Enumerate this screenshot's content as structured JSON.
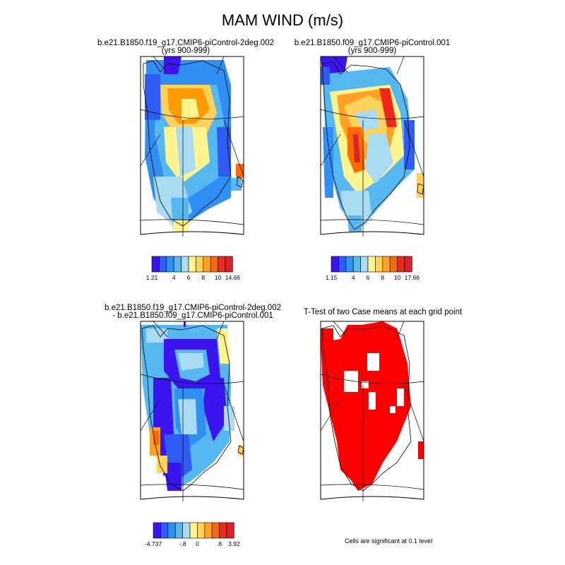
{
  "page": {
    "title": "MAM WIND (m/s)"
  },
  "panels": [
    {
      "id": "case1",
      "title_line1": "b.e21.B1850.f19_g17.CMIP6-piControl-2deg.002",
      "title_line2": "(yrs 900-999)"
    },
    {
      "id": "case2",
      "title_line1": "b.e21.B1850.f09_g17.CMIP6-piControl.001",
      "title_line2": "(yrs 900-999)"
    },
    {
      "id": "diff",
      "title_line1": "b.e21.B1850.f19_g17.CMIP6-piControl-2deg.002",
      "title_line2": "- b.e21.B1850.f09_g17.CMIP6-piControl.001"
    },
    {
      "id": "ttest",
      "title_line1": "T-Test of two Case means at each grid point",
      "title_line2": ""
    }
  ],
  "colorbars": [
    {
      "id": "case1",
      "colors": [
        "#3c14f0",
        "#2f5cf3",
        "#2f8ff2",
        "#56b8f0",
        "#a9dcf2",
        "#fff48e",
        "#ffd25c",
        "#ffa123",
        "#ff6a00",
        "#f0271a",
        "#d6262a"
      ],
      "tick_labels": [
        "1.21",
        "4",
        "6",
        "8",
        "10",
        "14.66"
      ]
    },
    {
      "id": "case2",
      "colors": [
        "#3c14f0",
        "#2f5cf3",
        "#2f8ff2",
        "#56b8f0",
        "#a9dcf2",
        "#fff48e",
        "#ffd25c",
        "#ffa123",
        "#ff6a00",
        "#f0271a",
        "#d6262a"
      ],
      "tick_labels": [
        "1.15",
        "4",
        "6",
        "8",
        "10",
        "17.66"
      ]
    },
    {
      "id": "diff",
      "colors": [
        "#3c14f0",
        "#2f5cf3",
        "#2f8ff2",
        "#56b8f0",
        "#a9dcf2",
        "#fff48e",
        "#ffd25c",
        "#ffa123",
        "#ff6a00",
        "#f0271a",
        "#d6262a"
      ],
      "tick_labels": [
        "-4.737",
        "-.8",
        "0",
        ".8",
        "3.92"
      ]
    }
  ],
  "significance_note": "Cells are significant at 0.1 level",
  "significance_color": "#ff0000",
  "chart_data": [
    {
      "type": "heatmap",
      "title": "b.e21.B1850.f19_g17.CMIP6-piControl-2deg.002 (yrs 900-999)",
      "variable": "MAM WIND",
      "units": "m/s",
      "colorbar_min": 1.21,
      "colorbar_max": 14.66,
      "colorbar_ticks": [
        4,
        6,
        8,
        10
      ],
      "region": "Greenland"
    },
    {
      "type": "heatmap",
      "title": "b.e21.B1850.f09_g17.CMIP6-piControl.001 (yrs 900-999)",
      "variable": "MAM WIND",
      "units": "m/s",
      "colorbar_min": 1.15,
      "colorbar_max": 17.66,
      "colorbar_ticks": [
        4,
        6,
        8,
        10
      ],
      "region": "Greenland"
    },
    {
      "type": "heatmap",
      "title": "b.e21.B1850.f19_g17.CMIP6-piControl-2deg.002 - b.e21.B1850.f09_g17.CMIP6-piControl.001",
      "variable": "MAM WIND difference",
      "units": "m/s",
      "colorbar_min": -4.737,
      "colorbar_max": 3.92,
      "colorbar_ticks": [
        -0.8,
        0,
        0.8
      ],
      "region": "Greenland"
    },
    {
      "type": "heatmap",
      "title": "T-Test of two Case means at each grid point",
      "significance_level": 0.1,
      "region": "Greenland"
    }
  ]
}
